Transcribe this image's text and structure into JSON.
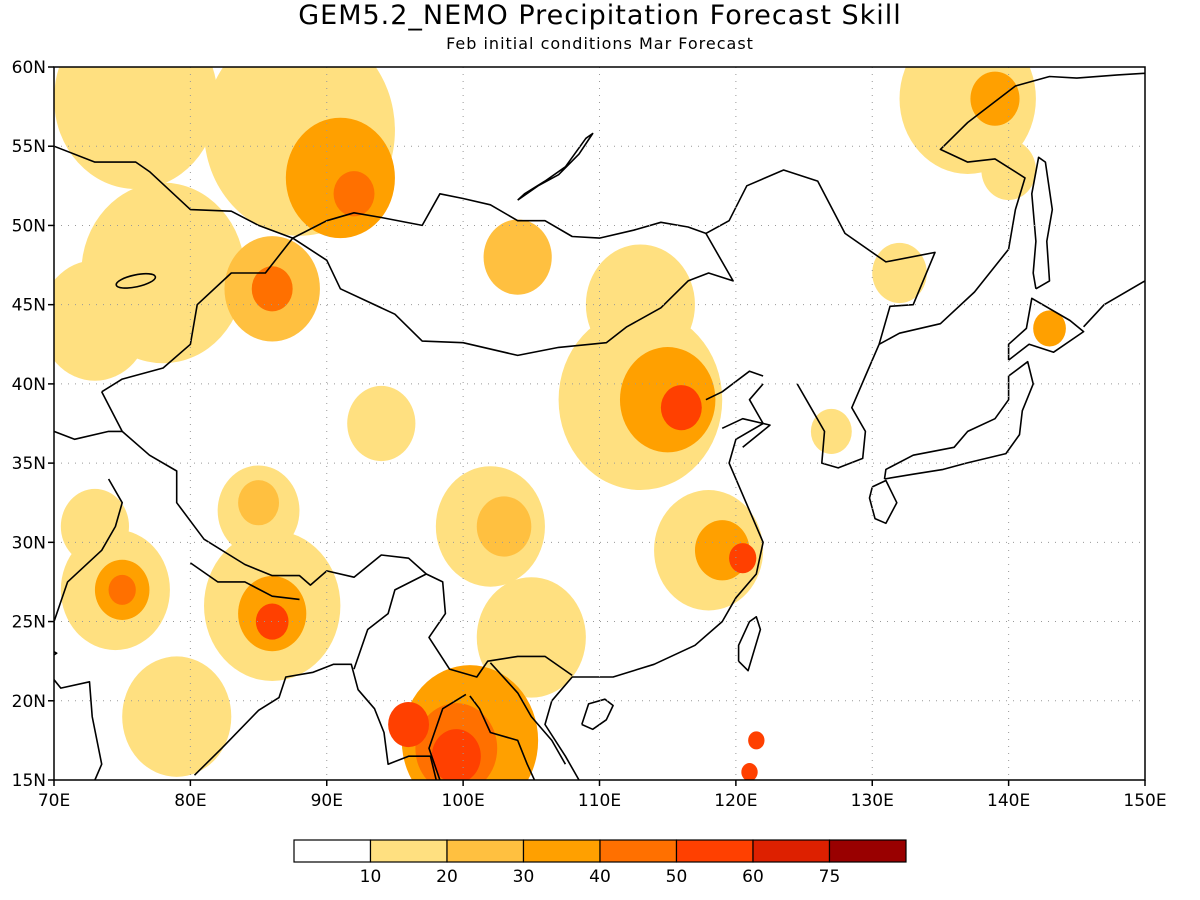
{
  "header": {
    "title": "GEM5.2_NEMO Precipitation Forecast Skill",
    "subtitle": "Feb initial conditions  Mar Forecast"
  },
  "map": {
    "lon_range": [
      70,
      150
    ],
    "lat_range": [
      15,
      60
    ],
    "lon_ticks": [
      {
        "value": 70,
        "label": "70E"
      },
      {
        "value": 80,
        "label": "80E"
      },
      {
        "value": 90,
        "label": "90E"
      },
      {
        "value": 100,
        "label": "100E"
      },
      {
        "value": 110,
        "label": "110E"
      },
      {
        "value": 120,
        "label": "120E"
      },
      {
        "value": 130,
        "label": "130E"
      },
      {
        "value": 140,
        "label": "140E"
      },
      {
        "value": 150,
        "label": "150E"
      }
    ],
    "lat_ticks": [
      {
        "value": 15,
        "label": "15N"
      },
      {
        "value": 20,
        "label": "20N"
      },
      {
        "value": 25,
        "label": "25N"
      },
      {
        "value": 30,
        "label": "30N"
      },
      {
        "value": 35,
        "label": "35N"
      },
      {
        "value": 40,
        "label": "40N"
      },
      {
        "value": 45,
        "label": "45N"
      },
      {
        "value": 50,
        "label": "50N"
      },
      {
        "value": 55,
        "label": "55N"
      },
      {
        "value": 60,
        "label": "60N"
      }
    ],
    "grid": "dotted",
    "regions": [
      {
        "name": "west-siberia-north",
        "lon": 76,
        "lat": 58,
        "r": 6,
        "level": 1
      },
      {
        "name": "central-siberia",
        "lon": 88,
        "lat": 56,
        "r": 7,
        "level": 1
      },
      {
        "name": "central-siberia-core",
        "lon": 91,
        "lat": 53,
        "r": 4,
        "level": 3
      },
      {
        "name": "central-siberia-max",
        "lon": 92,
        "lat": 52,
        "r": 1.5,
        "level": 4
      },
      {
        "name": "north-kazakhstan",
        "lon": 78,
        "lat": 47,
        "r": 6,
        "level": 1
      },
      {
        "name": "kazakhstan-west",
        "lon": 73,
        "lat": 44,
        "r": 4,
        "level": 1
      },
      {
        "name": "lake-balkhash",
        "lon": 86,
        "lat": 46,
        "r": 3.5,
        "level": 2
      },
      {
        "name": "lake-balkhash-core",
        "lon": 86,
        "lat": 46,
        "r": 1.5,
        "level": 4
      },
      {
        "name": "mongolia-west",
        "lon": 104,
        "lat": 48,
        "r": 2.5,
        "level": 2
      },
      {
        "name": "inner-mongolia-east",
        "lon": 113,
        "lat": 45,
        "r": 4,
        "level": 1
      },
      {
        "name": "north-china",
        "lon": 113,
        "lat": 39,
        "r": 6,
        "level": 1
      },
      {
        "name": "north-china-core",
        "lon": 115,
        "lat": 39,
        "r": 3.5,
        "level": 3
      },
      {
        "name": "north-china-max",
        "lon": 116,
        "lat": 38.5,
        "r": 1.5,
        "level": 5
      },
      {
        "name": "tarim-north",
        "lon": 94,
        "lat": 37.5,
        "r": 2.5,
        "level": 1
      },
      {
        "name": "tibet-west",
        "lon": 85,
        "lat": 32,
        "r": 3,
        "level": 1
      },
      {
        "name": "tibet-west-core",
        "lon": 85,
        "lat": 32.5,
        "r": 1.5,
        "level": 2
      },
      {
        "name": "qinghai-sichuan",
        "lon": 102,
        "lat": 31,
        "r": 4,
        "level": 1
      },
      {
        "name": "sichuan-core",
        "lon": 103,
        "lat": 31,
        "r": 2,
        "level": 2
      },
      {
        "name": "yunnan-guangxi",
        "lon": 105,
        "lat": 24,
        "r": 4,
        "level": 1
      },
      {
        "name": "jiangxi",
        "lon": 118,
        "lat": 29.5,
        "r": 4,
        "level": 1
      },
      {
        "name": "jiangxi-core",
        "lon": 119,
        "lat": 29.5,
        "r": 2,
        "level": 3
      },
      {
        "name": "zhejiang-max",
        "lon": 120.5,
        "lat": 29,
        "r": 1,
        "level": 5
      },
      {
        "name": "nepal-bihar",
        "lon": 86,
        "lat": 26,
        "r": 5,
        "level": 1
      },
      {
        "name": "nepal-bihar-core",
        "lon": 86,
        "lat": 25.5,
        "r": 2.5,
        "level": 3
      },
      {
        "name": "bihar-max",
        "lon": 86,
        "lat": 25,
        "r": 1.2,
        "level": 5
      },
      {
        "name": "rajasthan",
        "lon": 74.5,
        "lat": 27,
        "r": 4,
        "level": 1
      },
      {
        "name": "rajasthan-core",
        "lon": 75,
        "lat": 27,
        "r": 2,
        "level": 3
      },
      {
        "name": "rajasthan-max",
        "lon": 75,
        "lat": 27,
        "r": 1,
        "level": 4
      },
      {
        "name": "western-india",
        "lon": 73,
        "lat": 31,
        "r": 2.5,
        "level": 1
      },
      {
        "name": "central-india-south",
        "lon": 79,
        "lat": 19,
        "r": 4,
        "level": 1
      },
      {
        "name": "indochina",
        "lon": 100.5,
        "lat": 17.5,
        "r": 5,
        "level": 3
      },
      {
        "name": "indochina-core",
        "lon": 99.5,
        "lat": 17,
        "r": 3,
        "level": 4
      },
      {
        "name": "indochina-max",
        "lon": 99.5,
        "lat": 16.5,
        "r": 1.8,
        "level": 5
      },
      {
        "name": "myanmar-west",
        "lon": 96,
        "lat": 18.5,
        "r": 1.5,
        "level": 5
      },
      {
        "name": "taiwan-south",
        "lon": 121,
        "lat": 15.5,
        "r": 0.6,
        "level": 5
      },
      {
        "name": "taiwan-mid",
        "lon": 121.5,
        "lat": 17.5,
        "r": 0.6,
        "level": 5
      },
      {
        "name": "okhotsk-north",
        "lon": 137,
        "lat": 58,
        "r": 5,
        "level": 1
      },
      {
        "name": "okhotsk-core",
        "lon": 139,
        "lat": 58,
        "r": 1.8,
        "level": 3
      },
      {
        "name": "sakhalin-north",
        "lon": 140,
        "lat": 53.5,
        "r": 2,
        "level": 1
      },
      {
        "name": "korea",
        "lon": 127,
        "lat": 37,
        "r": 1.5,
        "level": 1
      },
      {
        "name": "hokkaido",
        "lon": 143,
        "lat": 43.5,
        "r": 1.2,
        "level": 3
      },
      {
        "name": "sea-of-japan-north",
        "lon": 132,
        "lat": 47,
        "r": 2,
        "level": 1
      }
    ]
  },
  "colorbar": {
    "colors": [
      "#ffffff",
      "#ffe080",
      "#ffc040",
      "#ffa000",
      "#ff7000",
      "#ff4000",
      "#dd2000",
      "#990000"
    ],
    "labels": [
      "10",
      "20",
      "30",
      "40",
      "50",
      "60",
      "75"
    ]
  }
}
